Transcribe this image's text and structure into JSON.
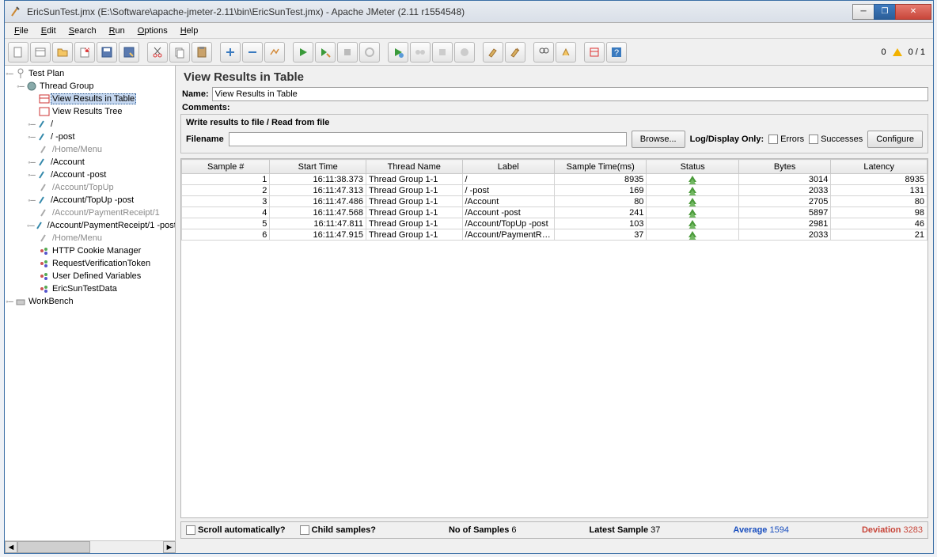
{
  "window": {
    "title": "EricSunTest.jmx (E:\\Software\\apache-jmeter-2.11\\bin\\EricSunTest.jmx) - Apache JMeter (2.11 r1554548)"
  },
  "menu": {
    "file": "File",
    "edit": "Edit",
    "search": "Search",
    "run": "Run",
    "options": "Options",
    "help": "Help"
  },
  "toolbar_status": {
    "warn_count": "0",
    "ratio": "0 / 1"
  },
  "tree": {
    "testplan": "Test Plan",
    "threadgroup": "Thread Group",
    "vrt": "View Results in Table",
    "vrtree": "View Results Tree",
    "i0": "/",
    "i1": "/ -post",
    "i2": "/Home/Menu",
    "i3": "/Account",
    "i4": "/Account -post",
    "i5": "/Account/TopUp",
    "i6": "/Account/TopUp -post",
    "i7": "/Account/PaymentReceipt/1",
    "i8": "/Account/PaymentReceipt/1 -post",
    "i9": "/Home/Menu",
    "cookie": "HTTP Cookie Manager",
    "rvt": "RequestVerificationToken",
    "udv": "User Defined Variables",
    "data": "EricSunTestData",
    "workbench": "WorkBench"
  },
  "panel": {
    "heading": "View Results in Table",
    "name_label": "Name:",
    "name_value": "View Results in Table",
    "comments_label": "Comments:",
    "group_title": "Write results to file / Read from file",
    "filename_label": "Filename",
    "browse": "Browse...",
    "logonly": "Log/Display Only:",
    "errors": "Errors",
    "successes": "Successes",
    "configure": "Configure"
  },
  "table": {
    "cols": {
      "sample": "Sample #",
      "start": "Start Time",
      "thread": "Thread Name",
      "label": "Label",
      "time": "Sample Time(ms)",
      "status": "Status",
      "bytes": "Bytes",
      "latency": "Latency"
    },
    "widths": [
      110,
      120,
      120,
      115,
      115,
      115,
      115,
      120
    ],
    "rows": [
      {
        "n": "1",
        "start": "16:11:38.373",
        "thread": "Thread Group 1-1",
        "label": "/",
        "time": "8935",
        "bytes": "3014",
        "lat": "8935"
      },
      {
        "n": "2",
        "start": "16:11:47.313",
        "thread": "Thread Group 1-1",
        "label": "/ -post",
        "time": "169",
        "bytes": "2033",
        "lat": "131"
      },
      {
        "n": "3",
        "start": "16:11:47.486",
        "thread": "Thread Group 1-1",
        "label": "/Account",
        "time": "80",
        "bytes": "2705",
        "lat": "80"
      },
      {
        "n": "4",
        "start": "16:11:47.568",
        "thread": "Thread Group 1-1",
        "label": "/Account -post",
        "time": "241",
        "bytes": "5897",
        "lat": "98"
      },
      {
        "n": "5",
        "start": "16:11:47.811",
        "thread": "Thread Group 1-1",
        "label": "/Account/TopUp -post",
        "time": "103",
        "bytes": "2981",
        "lat": "46"
      },
      {
        "n": "6",
        "start": "16:11:47.915",
        "thread": "Thread Group 1-1",
        "label": "/Account/PaymentRecei...",
        "time": "37",
        "bytes": "2033",
        "lat": "21"
      }
    ]
  },
  "footer": {
    "scroll": "Scroll automatically?",
    "child": "Child samples?",
    "nsamp_l": "No of Samples",
    "nsamp_v": "6",
    "latest_l": "Latest Sample",
    "latest_v": "37",
    "avg_l": "Average",
    "avg_v": "1594",
    "dev_l": "Deviation",
    "dev_v": "3283"
  }
}
